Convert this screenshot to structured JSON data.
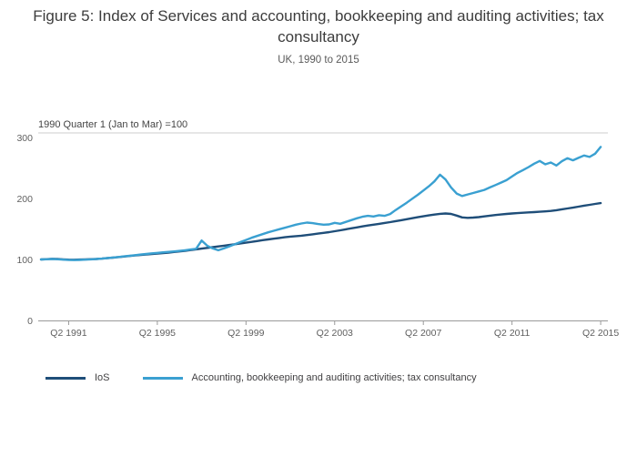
{
  "chart_data": {
    "type": "line",
    "title": "Figure 5: Index of Services and accounting, bookkeeping and auditing activities; tax consultancy",
    "subtitle": "UK, 1990 to 2015",
    "axis_note": "1990 Quarter 1 (Jan to Mar) =100",
    "x_start": 1990.0,
    "x_step": 0.25,
    "x_tick_labels": [
      "Q2 1991",
      "Q2 1995",
      "Q2 1999",
      "Q2 2003",
      "Q2 2007",
      "Q2 2011",
      "Q2 2015"
    ],
    "x_tick_positions": [
      1991.25,
      1995.25,
      1999.25,
      2003.25,
      2007.25,
      2011.25,
      2015.25
    ],
    "y_ticks": [
      0,
      100,
      200,
      300
    ],
    "ylim": [
      0,
      310
    ],
    "grid": "off",
    "legend_position": "bottom",
    "series": [
      {
        "name": "IoS",
        "color": "#1f4e79",
        "values": [
          100,
          100.5,
          101,
          100.8,
          100.1,
          99.7,
          99.5,
          99.8,
          100.1,
          100.4,
          100.8,
          101.4,
          102.2,
          103,
          103.9,
          104.8,
          105.7,
          106.6,
          107.4,
          108.2,
          109,
          109.7,
          110.4,
          111.2,
          112.2,
          113.2,
          114.2,
          115.4,
          116.6,
          117.8,
          119,
          120.2,
          121.4,
          122.6,
          123.8,
          125,
          126.2,
          127.5,
          128.8,
          130.2,
          131.6,
          132.8,
          134,
          135.2,
          136.4,
          137.4,
          138.2,
          139,
          140,
          141.2,
          142.4,
          143.6,
          144.8,
          146.2,
          147.8,
          149.4,
          151,
          152.6,
          154.2,
          155.6,
          157,
          158.4,
          159.8,
          161.2,
          162.8,
          164.4,
          166,
          167.6,
          169.2,
          170.8,
          172.2,
          173.6,
          174.8,
          175.4,
          174.6,
          172,
          169,
          168.2,
          168.6,
          169.4,
          170.6,
          171.8,
          172.8,
          173.8,
          174.6,
          175.4,
          176,
          176.6,
          177.2,
          177.6,
          178.2,
          178.8,
          179.6,
          180.8,
          182.2,
          183.6,
          185,
          186.6,
          188.2,
          189.6,
          191,
          192.4
        ]
      },
      {
        "name": "Accounting, bookkeeping and auditing activities; tax consultancy",
        "color": "#3aa0d1",
        "values": [
          100,
          100.3,
          100.7,
          100.3,
          99.7,
          99.1,
          98.9,
          99.3,
          99.7,
          100.1,
          100.7,
          101.4,
          102.3,
          103.2,
          104.1,
          105,
          106,
          107,
          108,
          109,
          110,
          110.8,
          111.6,
          112.4,
          113.2,
          114.1,
          115.1,
          116.2,
          117.5,
          131,
          122.5,
          118,
          115,
          118,
          121.5,
          125,
          128.5,
          132,
          135.5,
          138.5,
          141.5,
          144.5,
          147,
          149.5,
          152,
          154.5,
          157,
          159,
          160.5,
          159.5,
          158,
          157,
          157.5,
          160,
          158.5,
          161.5,
          164.5,
          167.5,
          170,
          171.5,
          170.5,
          172.5,
          171.5,
          174.5,
          181,
          187,
          193,
          199.5,
          206,
          213,
          220,
          228,
          239,
          231,
          218,
          208,
          204,
          206.5,
          209,
          211.5,
          214,
          218,
          222,
          226,
          230,
          236,
          242,
          246.5,
          251.5,
          257,
          261.5,
          256,
          259,
          254,
          261,
          266,
          262.5,
          266.5,
          270.5,
          268,
          273.5,
          284.5
        ]
      }
    ]
  }
}
